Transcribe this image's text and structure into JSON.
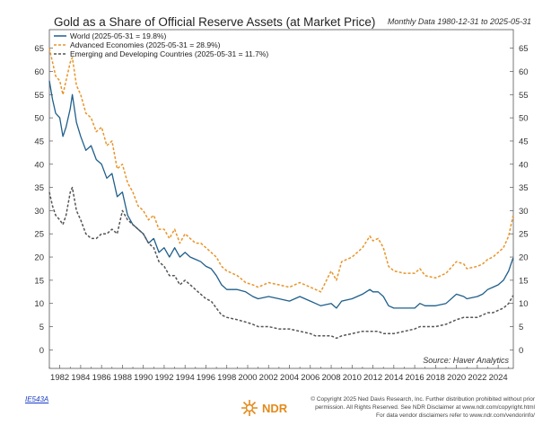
{
  "chart_data": {
    "type": "line",
    "title": "Gold as a Share of Official Reserve Assets (at Market Price)",
    "subtitle": "Monthly Data 1980-12-31 to 2025-05-31",
    "xlim": [
      1981.0,
      2025.45
    ],
    "ylim": [
      -4,
      69
    ],
    "x_ticks": [
      1982,
      1984,
      1986,
      1988,
      1990,
      1992,
      1994,
      1996,
      1998,
      2000,
      2002,
      2004,
      2006,
      2008,
      2010,
      2012,
      2014,
      2016,
      2018,
      2020,
      2022,
      2024
    ],
    "y_ticks": [
      0,
      5,
      10,
      15,
      20,
      25,
      30,
      35,
      40,
      45,
      50,
      55,
      60,
      65
    ],
    "legend_position": "top-left",
    "series": [
      {
        "name": "World (2025-05-31 = 19.8%)",
        "color": "#1f5f8b",
        "style": "solid",
        "x": [
          1981.0,
          1981.3,
          1981.6,
          1982.0,
          1982.3,
          1982.6,
          1983.0,
          1983.2,
          1983.6,
          1984.0,
          1984.5,
          1985.0,
          1985.5,
          1986.0,
          1986.5,
          1987.0,
          1987.5,
          1988.0,
          1988.5,
          1989.0,
          1989.5,
          1990.0,
          1990.5,
          1991.0,
          1991.5,
          1992.0,
          1992.5,
          1993.0,
          1993.5,
          1994.0,
          1994.5,
          1995.0,
          1995.5,
          1996.0,
          1996.5,
          1997.0,
          1997.5,
          1998.0,
          1999.0,
          1999.8,
          2000.5,
          2001.0,
          2002.0,
          2003.0,
          2004.0,
          2005.0,
          2006.0,
          2006.5,
          2007.0,
          2008.0,
          2008.5,
          2009.0,
          2010.0,
          2011.0,
          2011.7,
          2012.0,
          2012.5,
          2013.0,
          2013.5,
          2014.0,
          2015.0,
          2016.0,
          2016.5,
          2017.0,
          2018.0,
          2019.0,
          2020.0,
          2020.7,
          2021.0,
          2022.0,
          2022.5,
          2023.0,
          2023.5,
          2024.0,
          2024.5,
          2025.0,
          2025.42
        ],
        "values": [
          58,
          54,
          51,
          50,
          46,
          48,
          52,
          55,
          49,
          46,
          43,
          44,
          41,
          40,
          37,
          38,
          33,
          34,
          29,
          27,
          26,
          25,
          23,
          24,
          21,
          22,
          20,
          22,
          20,
          21,
          20,
          19.5,
          19,
          18,
          17.5,
          16,
          14,
          13,
          13,
          12.5,
          11.5,
          11,
          11.5,
          11,
          10.5,
          11.5,
          10.5,
          10,
          9.5,
          10,
          9,
          10.5,
          11,
          12,
          13,
          12.5,
          12.5,
          11.5,
          9.5,
          9,
          9,
          9,
          10,
          9.5,
          9.5,
          10,
          12,
          11.5,
          11,
          11.5,
          12,
          13,
          13.5,
          14,
          15,
          17,
          19.8
        ]
      },
      {
        "name": "Advanced Economies (2025-05-31 = 28.9%)",
        "color": "#e8952a",
        "style": "dashed",
        "x": [
          1981.0,
          1981.3,
          1981.6,
          1982.0,
          1982.3,
          1982.6,
          1983.0,
          1983.2,
          1983.6,
          1984.0,
          1984.5,
          1985.0,
          1985.5,
          1986.0,
          1986.5,
          1987.0,
          1987.5,
          1988.0,
          1988.5,
          1989.0,
          1989.5,
          1990.0,
          1990.5,
          1991.0,
          1991.5,
          1992.0,
          1992.5,
          1993.0,
          1993.5,
          1994.0,
          1994.5,
          1995.0,
          1995.5,
          1996.0,
          1996.5,
          1997.0,
          1997.5,
          1998.0,
          1999.0,
          1999.8,
          2000.5,
          2001.0,
          2002.0,
          2003.0,
          2004.0,
          2005.0,
          2006.0,
          2006.5,
          2007.0,
          2008.0,
          2008.5,
          2009.0,
          2010.0,
          2011.0,
          2011.7,
          2012.0,
          2012.5,
          2013.0,
          2013.5,
          2014.0,
          2015.0,
          2016.0,
          2016.5,
          2017.0,
          2018.0,
          2019.0,
          2020.0,
          2020.7,
          2021.0,
          2022.0,
          2022.5,
          2023.0,
          2023.5,
          2024.0,
          2024.5,
          2025.0,
          2025.42
        ],
        "values": [
          65,
          62,
          59,
          58,
          55,
          58,
          62,
          63,
          57,
          55,
          51,
          50,
          47,
          48,
          44,
          45,
          39,
          40,
          36,
          34,
          31,
          30,
          28,
          29,
          26,
          26,
          24,
          26,
          23,
          25,
          24,
          23,
          23,
          22,
          21,
          20,
          18,
          17,
          16,
          14.5,
          14,
          13.5,
          14.5,
          14,
          13.5,
          14.5,
          13.5,
          13,
          12.5,
          17,
          15,
          19,
          20,
          22,
          24.5,
          23.5,
          24,
          22,
          18,
          17,
          16.5,
          16.5,
          17.5,
          16,
          15.5,
          16.5,
          19,
          18.5,
          17.5,
          18,
          18.5,
          19.5,
          20,
          21,
          22,
          24.5,
          28.9
        ]
      },
      {
        "name": "Emerging and Developing Countries (2025-05-31 = 11.7%)",
        "color": "#555555",
        "style": "dashed",
        "x": [
          1981.0,
          1981.3,
          1981.6,
          1982.0,
          1982.3,
          1982.6,
          1983.0,
          1983.2,
          1983.6,
          1984.0,
          1984.5,
          1985.0,
          1985.5,
          1986.0,
          1986.5,
          1987.0,
          1987.5,
          1988.0,
          1988.5,
          1989.0,
          1989.5,
          1990.0,
          1990.5,
          1991.0,
          1991.5,
          1992.0,
          1992.5,
          1993.0,
          1993.5,
          1994.0,
          1994.5,
          1995.0,
          1995.5,
          1996.0,
          1996.5,
          1997.0,
          1997.5,
          1998.0,
          1999.0,
          1999.8,
          2000.5,
          2001.0,
          2002.0,
          2003.0,
          2004.0,
          2005.0,
          2006.0,
          2006.5,
          2007.0,
          2008.0,
          2008.5,
          2009.0,
          2010.0,
          2011.0,
          2011.7,
          2012.0,
          2012.5,
          2013.0,
          2013.5,
          2014.0,
          2015.0,
          2016.0,
          2016.5,
          2017.0,
          2018.0,
          2019.0,
          2020.0,
          2020.7,
          2021.0,
          2022.0,
          2022.5,
          2023.0,
          2023.5,
          2024.0,
          2024.5,
          2025.0,
          2025.42
        ],
        "values": [
          34,
          31,
          29,
          28,
          27,
          29,
          34,
          35,
          30,
          28,
          25,
          24,
          24,
          25,
          25,
          26,
          25,
          30,
          28,
          27,
          26,
          25,
          23,
          22,
          19,
          18,
          16,
          16,
          14,
          15,
          14,
          13,
          12,
          11,
          10.5,
          9,
          7.5,
          7,
          6.5,
          6,
          5.5,
          5,
          5,
          4.5,
          4.5,
          4,
          3.5,
          3,
          3,
          3,
          2.5,
          3,
          3.5,
          4,
          4,
          4,
          4,
          3.5,
          3.5,
          3.5,
          4,
          4.5,
          5,
          5,
          5,
          5.5,
          6.5,
          7,
          7,
          7,
          7.5,
          8,
          8,
          8.5,
          9,
          10,
          11.7
        ]
      }
    ],
    "source": "Source: Haver Analytics"
  },
  "footer": {
    "chart_code": "IE543A",
    "copyright_lines": [
      "© Copyright 2025 Ned Davis Research, Inc. Further distribution prohibited without prior",
      "permission. All Rights Reserved. See NDR Disclaimer at www.ndr.com/copyright.html",
      "For data vendor disclaimers refer to www.ndr.com/vendorinfo/"
    ],
    "logo_text": "NDR"
  }
}
